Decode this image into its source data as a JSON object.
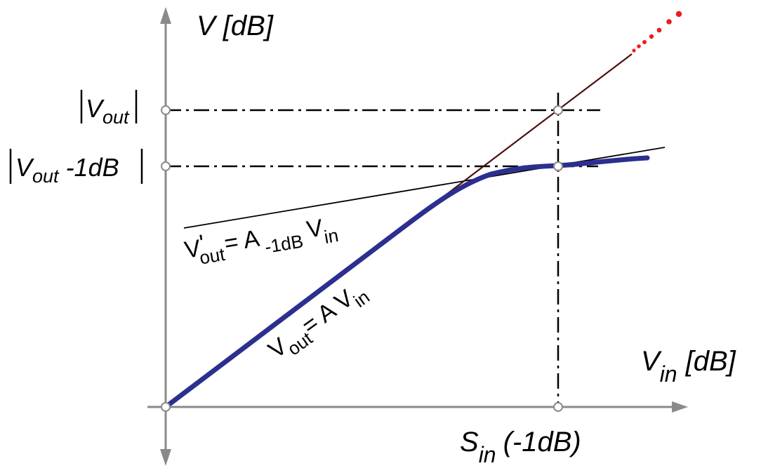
{
  "labels": {
    "y_axis_main": "V [dB]",
    "x_axis_main": "V",
    "x_axis_sub": "in",
    "x_axis_unit": "[dB]",
    "vout_main": "V",
    "vout_sub": "out",
    "vout1_main": "V",
    "vout1_sub": "out",
    "vout1_rest": "-1dB",
    "sin_main": "S",
    "sin_sub": "in",
    "sin_rest": "(-1dB)",
    "tangent_v": "V",
    "tangent_prime": "'",
    "tangent_out": "out",
    "tangent_eq": "= A",
    "tangent_gain_sub": "-1dB",
    "tangent_v2": "V",
    "tangent_in": "in",
    "linear_v": "V",
    "linear_out": "out",
    "linear_eq": "= A V",
    "linear_in": "in"
  },
  "colors": {
    "axis": "#8a8a8a",
    "compression_curve": "#2b2f8f",
    "linear_line": "#4a0f0f",
    "extrapolation_dots": "#ee1c1c",
    "tangent_line": "#000000",
    "guide_lines": "#000000",
    "marker_fill": "#ffffff",
    "marker_stroke": "#8a8a8a"
  },
  "icons": {
    "x_arrow": "arrow-right-icon",
    "y_arrow_up": "arrow-up-icon",
    "y_arrow_down": "arrow-down-icon"
  }
}
